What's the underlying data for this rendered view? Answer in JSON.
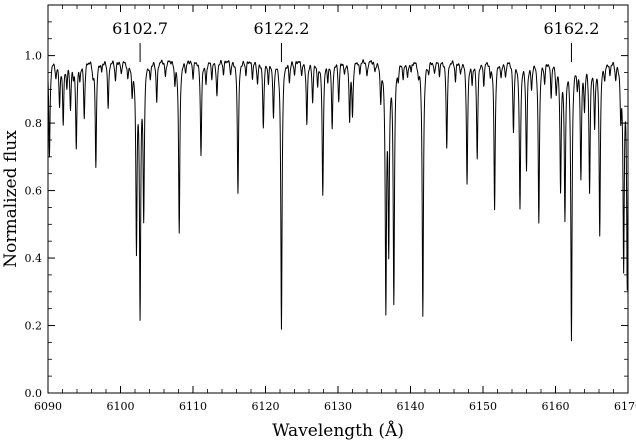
{
  "chart_data": {
    "type": "line",
    "title": "",
    "xlabel": "Wavelength (Å)",
    "ylabel": "Normalized flux",
    "xlim": [
      6090,
      6170
    ],
    "ylim": [
      0.0,
      1.15
    ],
    "x_ticks": [
      6090,
      6100,
      6110,
      6120,
      6130,
      6140,
      6150,
      6160,
      6170
    ],
    "x_tick_labels": [
      "6090",
      "6100",
      "6110",
      "6120",
      "6130",
      "6140",
      "6150",
      "6160",
      "6170"
    ],
    "y_ticks": [
      0.0,
      0.2,
      0.4,
      0.6,
      0.8,
      1.0
    ],
    "y_tick_labels": [
      "0.0",
      "0.2",
      "0.4",
      "0.6",
      "0.8",
      "1.0"
    ],
    "grid": false,
    "continuum": 0.99,
    "annotations": [
      {
        "label": "6102.7",
        "x": 6102.7
      },
      {
        "label": "6122.2",
        "x": 6122.2
      },
      {
        "label": "6162.2",
        "x": 6162.2
      }
    ],
    "absorption_lines": [
      {
        "x": 6090.2,
        "min": 0.7
      },
      {
        "x": 6091.1,
        "min": 0.94
      },
      {
        "x": 6091.6,
        "min": 0.86
      },
      {
        "x": 6092.1,
        "min": 0.81
      },
      {
        "x": 6092.6,
        "min": 0.92
      },
      {
        "x": 6093.1,
        "min": 0.85
      },
      {
        "x": 6093.5,
        "min": 0.96
      },
      {
        "x": 6093.9,
        "min": 0.73
      },
      {
        "x": 6094.4,
        "min": 0.94
      },
      {
        "x": 6095.0,
        "min": 0.82
      },
      {
        "x": 6096.2,
        "min": 0.95
      },
      {
        "x": 6096.6,
        "min": 0.68
      },
      {
        "x": 6097.4,
        "min": 0.96
      },
      {
        "x": 6098.3,
        "min": 0.85
      },
      {
        "x": 6099.3,
        "min": 0.93
      },
      {
        "x": 6100.1,
        "min": 0.95
      },
      {
        "x": 6101.0,
        "min": 0.94
      },
      {
        "x": 6101.6,
        "min": 0.9
      },
      {
        "x": 6102.2,
        "min": 0.45
      },
      {
        "x": 6102.7,
        "min": 0.26
      },
      {
        "x": 6103.2,
        "min": 0.54
      },
      {
        "x": 6104.1,
        "min": 0.94
      },
      {
        "x": 6105.0,
        "min": 0.87
      },
      {
        "x": 6106.2,
        "min": 0.94
      },
      {
        "x": 6107.5,
        "min": 0.93
      },
      {
        "x": 6108.1,
        "min": 0.48
      },
      {
        "x": 6109.0,
        "min": 0.96
      },
      {
        "x": 6110.0,
        "min": 0.94
      },
      {
        "x": 6111.1,
        "min": 0.71
      },
      {
        "x": 6111.8,
        "min": 0.92
      },
      {
        "x": 6112.6,
        "min": 0.94
      },
      {
        "x": 6113.3,
        "min": 0.88
      },
      {
        "x": 6114.2,
        "min": 0.95
      },
      {
        "x": 6115.2,
        "min": 0.95
      },
      {
        "x": 6116.2,
        "min": 0.6
      },
      {
        "x": 6117.3,
        "min": 0.95
      },
      {
        "x": 6118.2,
        "min": 0.94
      },
      {
        "x": 6118.9,
        "min": 0.92
      },
      {
        "x": 6119.7,
        "min": 0.79
      },
      {
        "x": 6120.4,
        "min": 0.93
      },
      {
        "x": 6121.1,
        "min": 0.82
      },
      {
        "x": 6122.2,
        "min": 0.19
      },
      {
        "x": 6123.3,
        "min": 0.93
      },
      {
        "x": 6124.0,
        "min": 0.95
      },
      {
        "x": 6125.0,
        "min": 0.95
      },
      {
        "x": 6125.7,
        "min": 0.8
      },
      {
        "x": 6126.5,
        "min": 0.87
      },
      {
        "x": 6127.2,
        "min": 0.92
      },
      {
        "x": 6127.9,
        "min": 0.59
      },
      {
        "x": 6128.6,
        "min": 0.94
      },
      {
        "x": 6129.2,
        "min": 0.79
      },
      {
        "x": 6130.1,
        "min": 0.87
      },
      {
        "x": 6130.9,
        "min": 0.95
      },
      {
        "x": 6131.6,
        "min": 0.82
      },
      {
        "x": 6132.0,
        "min": 0.83
      },
      {
        "x": 6133.0,
        "min": 0.95
      },
      {
        "x": 6134.0,
        "min": 0.94
      },
      {
        "x": 6135.1,
        "min": 0.96
      },
      {
        "x": 6135.9,
        "min": 0.88
      },
      {
        "x": 6136.6,
        "min": 0.27
      },
      {
        "x": 6137.0,
        "min": 0.46
      },
      {
        "x": 6137.7,
        "min": 0.28
      },
      {
        "x": 6138.3,
        "min": 0.95
      },
      {
        "x": 6139.0,
        "min": 0.94
      },
      {
        "x": 6139.6,
        "min": 0.94
      },
      {
        "x": 6140.1,
        "min": 0.96
      },
      {
        "x": 6141.1,
        "min": 0.95
      },
      {
        "x": 6141.7,
        "min": 0.23
      },
      {
        "x": 6142.5,
        "min": 0.96
      },
      {
        "x": 6143.3,
        "min": 0.95
      },
      {
        "x": 6144.0,
        "min": 0.95
      },
      {
        "x": 6145.0,
        "min": 0.73
      },
      {
        "x": 6146.2,
        "min": 0.93
      },
      {
        "x": 6146.9,
        "min": 0.95
      },
      {
        "x": 6147.8,
        "min": 0.62
      },
      {
        "x": 6148.5,
        "min": 0.93
      },
      {
        "x": 6149.2,
        "min": 0.7
      },
      {
        "x": 6150.1,
        "min": 0.92
      },
      {
        "x": 6151.0,
        "min": 0.95
      },
      {
        "x": 6151.6,
        "min": 0.55
      },
      {
        "x": 6152.5,
        "min": 0.94
      },
      {
        "x": 6153.1,
        "min": 0.94
      },
      {
        "x": 6154.2,
        "min": 0.78
      },
      {
        "x": 6155.1,
        "min": 0.55
      },
      {
        "x": 6156.0,
        "min": 0.67
      },
      {
        "x": 6156.7,
        "min": 0.91
      },
      {
        "x": 6157.7,
        "min": 0.51
      },
      {
        "x": 6158.5,
        "min": 0.93
      },
      {
        "x": 6159.4,
        "min": 0.89
      },
      {
        "x": 6160.1,
        "min": 0.9
      },
      {
        "x": 6160.7,
        "min": 0.61
      },
      {
        "x": 6161.3,
        "min": 0.53
      },
      {
        "x": 6162.2,
        "min": 0.17
      },
      {
        "x": 6163.0,
        "min": 0.93
      },
      {
        "x": 6163.5,
        "min": 0.65
      },
      {
        "x": 6164.0,
        "min": 0.86
      },
      {
        "x": 6164.7,
        "min": 0.61
      },
      {
        "x": 6165.4,
        "min": 0.8
      },
      {
        "x": 6166.1,
        "min": 0.48
      },
      {
        "x": 6166.8,
        "min": 0.94
      },
      {
        "x": 6167.5,
        "min": 0.95
      },
      {
        "x": 6168.3,
        "min": 0.94
      },
      {
        "x": 6169.0,
        "min": 0.84
      },
      {
        "x": 6169.4,
        "min": 0.39
      },
      {
        "x": 6169.9,
        "min": 0.33
      }
    ]
  }
}
